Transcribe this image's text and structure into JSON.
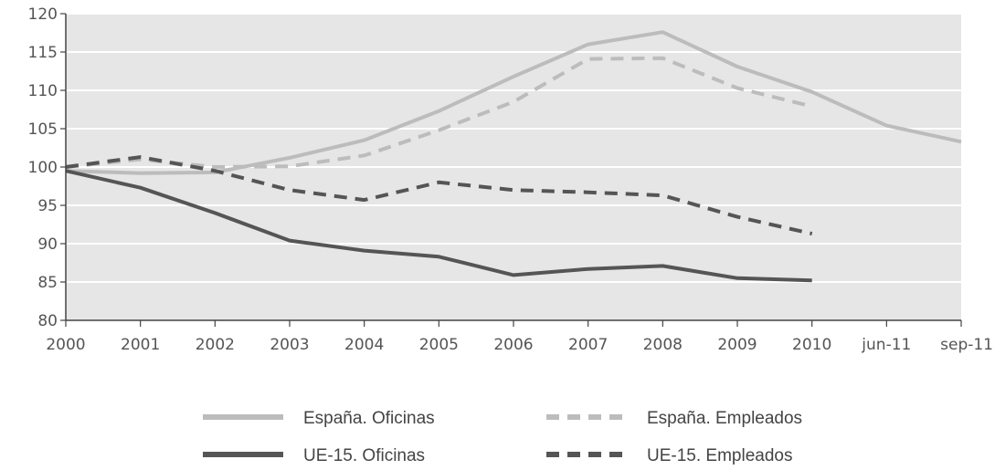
{
  "chart_data": {
    "type": "line",
    "categories": [
      "2000",
      "2001",
      "2002",
      "2003",
      "2004",
      "2005",
      "2006",
      "2007",
      "2008",
      "2009",
      "2010",
      "jun-11",
      "sep-11"
    ],
    "ylim": [
      80,
      120
    ],
    "yticks": [
      80,
      85,
      90,
      95,
      100,
      105,
      110,
      115,
      120
    ],
    "grid": true,
    "legend_position": "bottom",
    "plot_background": "#e6e6e6",
    "series": [
      {
        "name": "España. Oficinas",
        "color": "#bcbcbc",
        "style": "solid",
        "values": [
          99.5,
          99.2,
          99.3,
          101.2,
          103.5,
          107.3,
          111.8,
          116.0,
          117.6,
          113.1,
          109.8,
          105.4,
          103.3
        ]
      },
      {
        "name": "España. Empleados",
        "color": "#bcbcbc",
        "style": "dashed",
        "values": [
          100.0,
          101.0,
          100.0,
          100.1,
          101.5,
          104.8,
          108.5,
          114.1,
          114.2,
          110.3,
          107.9,
          null,
          null
        ]
      },
      {
        "name": "UE-15. Oficinas",
        "color": "#555555",
        "style": "solid",
        "values": [
          99.5,
          97.3,
          94.0,
          90.4,
          89.1,
          88.3,
          85.9,
          86.7,
          87.1,
          85.5,
          85.2,
          null,
          null
        ]
      },
      {
        "name": "UE-15. Empleados",
        "color": "#555555",
        "style": "dashed",
        "values": [
          100.0,
          101.3,
          99.5,
          97.0,
          95.7,
          98.0,
          97.0,
          96.7,
          96.3,
          93.5,
          91.3,
          null,
          null
        ]
      }
    ]
  }
}
